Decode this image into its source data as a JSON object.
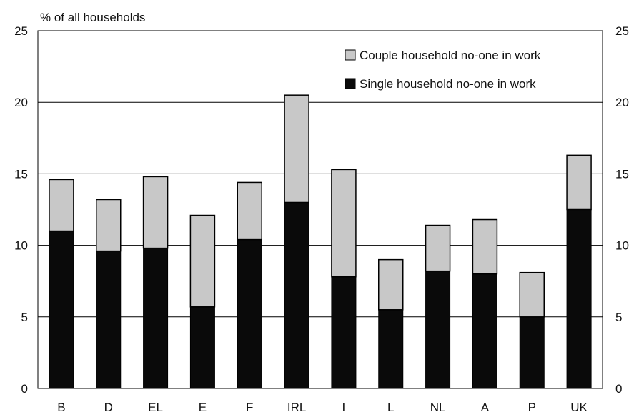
{
  "chart_data": {
    "type": "bar",
    "stacked": true,
    "ylabel": "% of all households",
    "ylim": [
      0,
      25
    ],
    "yticks": [
      0,
      5,
      10,
      15,
      20,
      25
    ],
    "grid": true,
    "legend_position": "top-right",
    "categories": [
      "B",
      "D",
      "EL",
      "E",
      "F",
      "IRL",
      "I",
      "L",
      "NL",
      "A",
      "P",
      "UK"
    ],
    "series": [
      {
        "name": "Single household no-one in work",
        "color": "#0a0a0a",
        "values": [
          11.0,
          9.6,
          9.8,
          5.7,
          10.4,
          13.0,
          7.8,
          5.5,
          8.2,
          8.0,
          5.0,
          12.5
        ]
      },
      {
        "name": "Couple household no-one in work",
        "color": "#c8c8c8",
        "values": [
          3.6,
          3.6,
          5.0,
          6.4,
          4.0,
          7.5,
          7.5,
          3.5,
          3.2,
          3.8,
          3.1,
          3.8
        ]
      }
    ]
  }
}
